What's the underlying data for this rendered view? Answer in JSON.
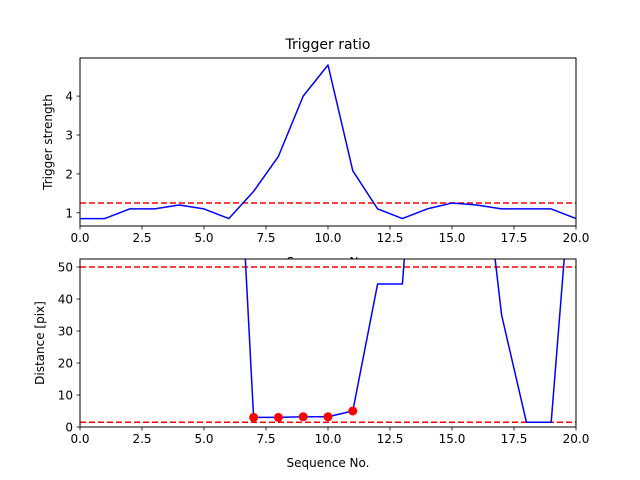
{
  "chart_data": [
    {
      "type": "line",
      "title": "Trigger ratio",
      "xlabel": "Sequence No.",
      "ylabel": "Trigger strength",
      "xlim": [
        0,
        20
      ],
      "ylim": [
        0.66,
        4.98
      ],
      "x_ticks": [
        0,
        2.5,
        5,
        7.5,
        10,
        12.5,
        15,
        17.5,
        20
      ],
      "x_tick_labels": [
        "0.0",
        "2.5",
        "5.0",
        "7.5",
        "10.0",
        "12.5",
        "15.0",
        "17.5",
        "20.0"
      ],
      "y_ticks": [
        1,
        2,
        3,
        4
      ],
      "y_tick_labels": [
        "1",
        "2",
        "3",
        "4"
      ],
      "series": [
        {
          "color": "#0000ff",
          "x": [
            0,
            1,
            2,
            3,
            4,
            5,
            6,
            7,
            8,
            9,
            10,
            11,
            12,
            13,
            14,
            15,
            16,
            17,
            18,
            19,
            20
          ],
          "y": [
            0.85,
            0.85,
            1.1,
            1.1,
            1.2,
            1.1,
            0.85,
            1.55,
            2.45,
            4.0,
            4.8,
            2.08,
            1.1,
            0.85,
            1.1,
            1.25,
            1.2,
            1.1,
            1.1,
            1.1,
            0.85
          ]
        }
      ],
      "hlines": [
        {
          "y": 1.25,
          "color": "#ff0000",
          "style": "dashed"
        }
      ],
      "grid": false
    },
    {
      "type": "line",
      "title": "",
      "xlabel": "Sequence No.",
      "ylabel": "Distance [pix]",
      "xlim": [
        0,
        20
      ],
      "ylim": [
        0,
        52.5
      ],
      "x_ticks": [
        0,
        2.5,
        5,
        7.5,
        10,
        12.5,
        15,
        17.5,
        20
      ],
      "x_tick_labels": [
        "0.0",
        "2.5",
        "5.0",
        "7.5",
        "10.0",
        "12.5",
        "15.0",
        "17.5",
        "20.0"
      ],
      "y_ticks": [
        0,
        10,
        20,
        30,
        40,
        50
      ],
      "y_tick_labels": [
        "0",
        "10",
        "20",
        "30",
        "40",
        "50"
      ],
      "series": [
        {
          "color": "#0000ff",
          "x": [
            6.65,
            7,
            8,
            9,
            10,
            11,
            12,
            13,
            13.1,
            16.7,
            17,
            18,
            19,
            19.55
          ],
          "y": [
            55,
            3,
            3,
            3.2,
            3.2,
            5,
            44.7,
            44.7,
            55,
            55,
            35,
            1.5,
            1.5,
            55
          ]
        }
      ],
      "markers": {
        "color": "#ff0000",
        "x": [
          7,
          8,
          9,
          10,
          11
        ],
        "y": [
          3,
          3,
          3.2,
          3.2,
          5
        ]
      },
      "hlines": [
        {
          "y": 50,
          "color": "#ff0000",
          "style": "dashed"
        },
        {
          "y": 1.5,
          "color": "#ff0000",
          "style": "dashed"
        }
      ],
      "grid": false
    }
  ]
}
